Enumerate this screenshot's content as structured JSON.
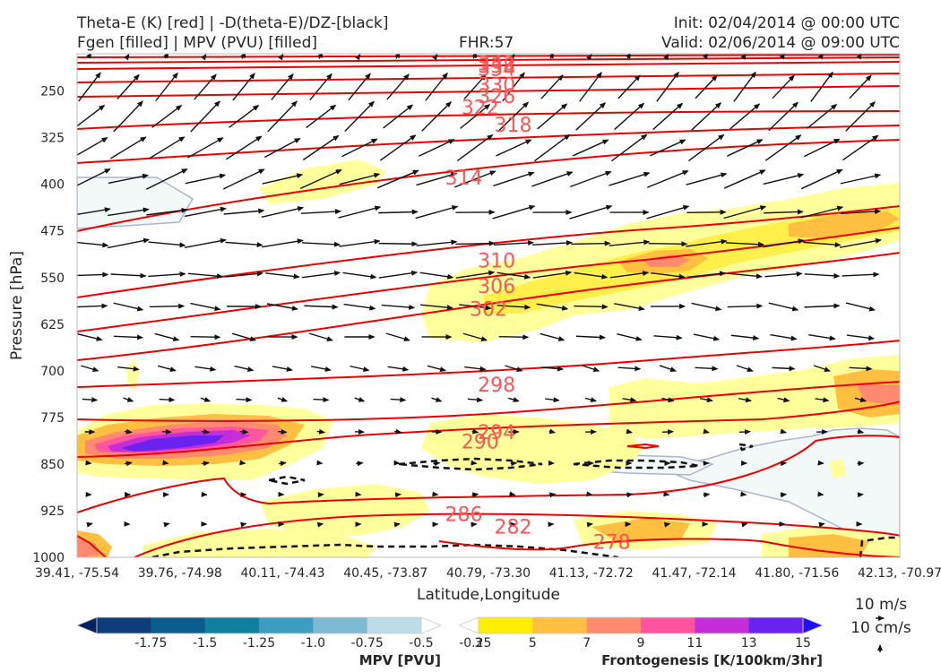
{
  "header": {
    "title_line1_left": "Theta-E (K) [red] | -D(theta-E)/DZ-[black]",
    "title_line2_left": "Fgen [filled] | MPV (PVU) [filled]",
    "fhr": "FHR:57",
    "init": "Init: 02/04/2014 @ 00:00 UTC",
    "valid": "Valid: 02/06/2014 @ 09:00 UTC"
  },
  "chart_data": {
    "type": "cross-section",
    "xlabel": "Latitude,Longitude",
    "ylabel": "Pressure [hPa]",
    "x_ticks": [
      "39.41, -75.54",
      "39.76, -74.98",
      "40.11, -74.43",
      "40.45, -73.87",
      "40.79, -73.30",
      "41.13, -72.72",
      "41.47, -72.14",
      "41.80, -71.56",
      "42.13, -70.97"
    ],
    "y_ticks": [
      250,
      325,
      400,
      475,
      550,
      625,
      700,
      775,
      850,
      925,
      1000
    ],
    "ylim": [
      1000,
      190
    ],
    "theta_e_labels": [
      {
        "value": "278",
        "x": 0.65,
        "p": 975
      },
      {
        "value": "282",
        "x": 0.53,
        "p": 950
      },
      {
        "value": "286",
        "x": 0.47,
        "p": 930
      },
      {
        "value": "290",
        "x": 0.49,
        "p": 813
      },
      {
        "value": "294",
        "x": 0.51,
        "p": 798
      },
      {
        "value": "298",
        "x": 0.51,
        "p": 722
      },
      {
        "value": "302",
        "x": 0.5,
        "p": 600
      },
      {
        "value": "306",
        "x": 0.51,
        "p": 563
      },
      {
        "value": "310",
        "x": 0.51,
        "p": 522
      },
      {
        "value": "314",
        "x": 0.47,
        "p": 389
      },
      {
        "value": "318",
        "x": 0.53,
        "p": 304
      },
      {
        "value": "322",
        "x": 0.49,
        "p": 276
      },
      {
        "value": "326",
        "x": 0.51,
        "p": 258
      },
      {
        "value": "330",
        "x": 0.51,
        "p": 240
      },
      {
        "value": "334",
        "x": 0.51,
        "p": 214
      },
      {
        "value": "338",
        "x": 0.51,
        "p": 209
      },
      {
        "value": "342",
        "x": 0.51,
        "p": 205
      }
    ],
    "mpv_colorbar": {
      "title": "MPV [PVU]",
      "ticks": [
        "-1.75",
        "-1.5",
        "-1.25",
        "-1.0",
        "-0.75",
        "-0.5",
        "-0.25"
      ],
      "colors": [
        "#08205e",
        "#0e3d7a",
        "#0a5e8e",
        "#11809f",
        "#3c9dc0",
        "#7db9d2",
        "#bcdde8",
        "#ffffff"
      ]
    },
    "fgen_colorbar": {
      "title": "Frontogenesis [K/100km/3hr]",
      "ticks": [
        "3",
        "5",
        "7",
        "9",
        "11",
        "13",
        "15"
      ],
      "colors": [
        "#ffffff",
        "#ffee00",
        "#ffbf40",
        "#ff8a70",
        "#ff55a0",
        "#c42dd8",
        "#6a22f0",
        "#2010ff"
      ]
    },
    "reference_vectors": [
      "10 m/s",
      "10 cm/s"
    ]
  }
}
